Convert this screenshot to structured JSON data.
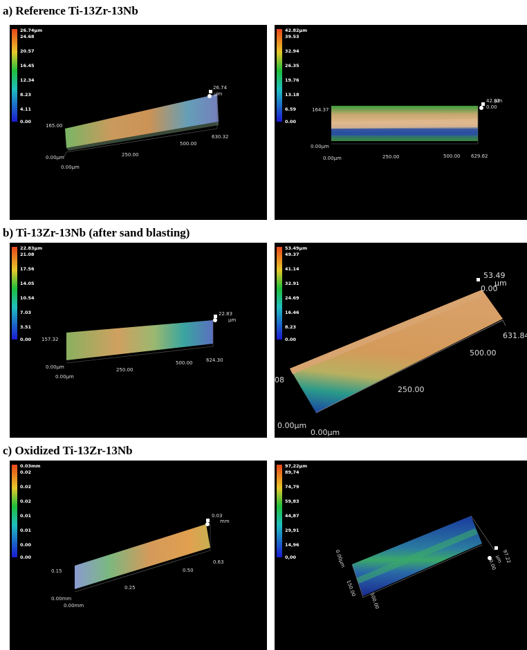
{
  "sections": [
    {
      "title": "a) Reference Ti-13Zr-13Nb",
      "panels": [
        {
          "scale_max": "26.74µm",
          "scale_ticks": [
            "24.68",
            "20.57",
            "16.45",
            "12.34",
            "8.23",
            "4.11",
            "0.00"
          ],
          "axes": {
            "origin_z": "0.00µm",
            "origin_x": "0.00µm",
            "y_extent": "165.00",
            "x_mid": "250.00",
            "x_500": "500.00",
            "x_end": "630.32",
            "z_top": "26.74",
            "z_unit": "µm"
          }
        },
        {
          "scale_max": "42.82µm",
          "scale_ticks": [
            "39.53",
            "32.94",
            "26.35",
            "19.76",
            "13.18",
            "6.59",
            "0.00"
          ],
          "axes": {
            "origin_z": "0.00µm",
            "origin_x": "0.00µm",
            "y_extent": "164.37",
            "x_mid": "250.00",
            "x_500": "500.00",
            "x_end": "629.62",
            "z_top": "42.82",
            "z_unit": "µm",
            "z_zero": "0.00"
          }
        }
      ]
    },
    {
      "title": "b) Ti-13Zr-13Nb (after sand blasting)",
      "panels": [
        {
          "scale_max": "22.83µm",
          "scale_ticks": [
            "21.08",
            "17.56",
            "14.05",
            "10.54",
            "7.03",
            "3.51",
            "0.00"
          ],
          "axes": {
            "origin_z": "0.00µm",
            "origin_x": "0.00µm",
            "y_extent": "157.32",
            "x_mid": "250.00",
            "x_500": "500.00",
            "x_end": "624.30",
            "z_top": "22.83",
            "z_unit": "µm"
          }
        },
        {
          "scale_max": "53.49µm",
          "scale_ticks": [
            "49.37",
            "41.14",
            "32.91",
            "24.69",
            "16.46",
            "8.23",
            "0.00"
          ],
          "axes": {
            "origin_z": "0.00µm",
            "origin_x": "0.00µm",
            "y_extent": "08",
            "x_mid": "250.00",
            "x_500": "500.00",
            "x_end": "631.84",
            "z_top": "53.49",
            "z_unit": "µm",
            "z_zero": "0.00"
          }
        }
      ]
    },
    {
      "title": "c) Oxidized Ti-13Zr-13Nb",
      "panels": [
        {
          "scale_max": "0.03mm",
          "scale_ticks": [
            "0.02",
            "0.02",
            "0.02",
            "0.01",
            "0.01",
            "0.00",
            "0.00"
          ],
          "axes": {
            "origin_z": "0.00mm",
            "origin_x": "0.00mm",
            "y_extent": "0.15",
            "x_mid": "0.25",
            "x_500": "0.50",
            "x_end": "0.63",
            "z_top": "0.03",
            "z_unit": "mm"
          }
        },
        {
          "scale_max": "97,22µm",
          "scale_ticks": [
            "89,74",
            "74,79",
            "59,83",
            "44,87",
            "29,91",
            "14,96",
            "0,00"
          ],
          "axes": {
            "origin_z": "0.00µm",
            "y_extent": "150.00",
            "x_500": "500.00",
            "z_top": "97.22",
            "z_unit": "µm",
            "z_zero": "0.00"
          }
        }
      ]
    }
  ],
  "colors": {
    "panel_bg": "#000000",
    "scale_top": "#e84a1a",
    "scale_mid": "#c8d22a",
    "scale_green": "#1fbf3c",
    "scale_cyan": "#1fbfbf",
    "scale_bottom": "#1a1ad2"
  }
}
